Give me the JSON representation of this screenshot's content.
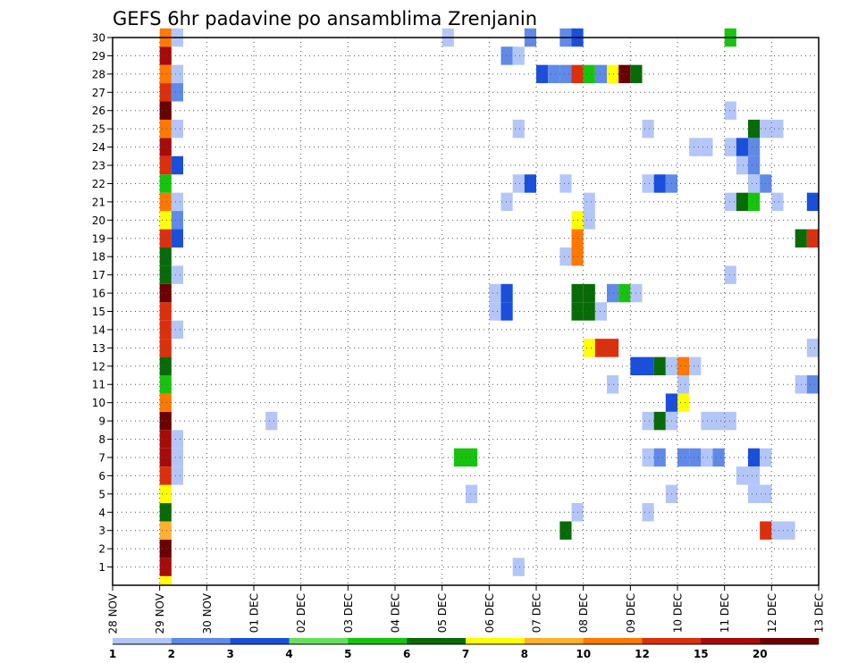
{
  "chart_data": {
    "type": "heatmap",
    "title": "GEFS 6hr padavine po ansamblima Zrenjanin",
    "xlabel": "",
    "ylabel": "",
    "x_start": "28 NOV",
    "x_ticks": [
      "28 NOV",
      "29 NOV",
      "30 NOV",
      "01 DEC",
      "02 DEC",
      "03 DEC",
      "04 DEC",
      "05 DEC",
      "06 DEC",
      "07 DEC",
      "08 DEC",
      "09 DEC",
      "10 DEC",
      "11 DEC",
      "12 DEC",
      "13 DEC"
    ],
    "steps_per_day": 4,
    "y_ticks": [
      1,
      2,
      3,
      4,
      5,
      6,
      7,
      8,
      9,
      10,
      11,
      12,
      13,
      14,
      15,
      16,
      17,
      18,
      19,
      20,
      21,
      22,
      23,
      24,
      25,
      26,
      27,
      28,
      29,
      30
    ],
    "ylim": [
      0,
      30
    ],
    "grid": true,
    "colorbar": {
      "labels": [
        "1",
        "2",
        "3",
        "4",
        "5",
        "6",
        "7",
        "8",
        "10",
        "12",
        "15",
        "20"
      ],
      "colors": [
        "#b3c6f7",
        "#5f8ae8",
        "#1a4fdc",
        "#66e05c",
        "#16c40e",
        "#076b07",
        "#ffff00",
        "#ffb02e",
        "#ff7800",
        "#dc2f0c",
        "#a80a0a",
        "#6b0000"
      ]
    },
    "cells": [
      {
        "m": 0,
        "s": 4,
        "l": 6
      },
      {
        "m": 1,
        "s": 4,
        "l": 10
      },
      {
        "m": 2,
        "s": 4,
        "l": 11
      },
      {
        "m": 3,
        "s": 4,
        "l": 7
      },
      {
        "m": 4,
        "s": 4,
        "l": 5
      },
      {
        "m": 5,
        "s": 4,
        "l": 6
      },
      {
        "m": 6,
        "s": 4,
        "l": 9
      },
      {
        "m": 7,
        "s": 4,
        "l": 10
      },
      {
        "m": 8,
        "s": 4,
        "l": 10
      },
      {
        "m": 9,
        "s": 4,
        "l": 11
      },
      {
        "m": 10,
        "s": 4,
        "l": 8
      },
      {
        "m": 11,
        "s": 4,
        "l": 4
      },
      {
        "m": 12,
        "s": 4,
        "l": 5
      },
      {
        "m": 13,
        "s": 4,
        "l": 9
      },
      {
        "m": 14,
        "s": 4,
        "l": 9
      },
      {
        "m": 15,
        "s": 4,
        "l": 9
      },
      {
        "m": 16,
        "s": 4,
        "l": 11
      },
      {
        "m": 17,
        "s": 4,
        "l": 5
      },
      {
        "m": 18,
        "s": 4,
        "l": 5
      },
      {
        "m": 19,
        "s": 4,
        "l": 9
      },
      {
        "m": 20,
        "s": 4,
        "l": 6
      },
      {
        "m": 21,
        "s": 4,
        "l": 8
      },
      {
        "m": 22,
        "s": 4,
        "l": 4
      },
      {
        "m": 23,
        "s": 4,
        "l": 9
      },
      {
        "m": 24,
        "s": 4,
        "l": 10
      },
      {
        "m": 25,
        "s": 4,
        "l": 8
      },
      {
        "m": 26,
        "s": 4,
        "l": 11
      },
      {
        "m": 27,
        "s": 4,
        "l": 9
      },
      {
        "m": 28,
        "s": 4,
        "l": 8
      },
      {
        "m": 29,
        "s": 4,
        "l": 10
      },
      {
        "m": 30,
        "s": 4,
        "l": 8
      },
      {
        "m": 30,
        "s": 5,
        "l": 0
      },
      {
        "m": 28,
        "s": 5,
        "l": 0
      },
      {
        "m": 27,
        "s": 5,
        "l": 1
      },
      {
        "m": 25,
        "s": 5,
        "l": 0
      },
      {
        "m": 23,
        "s": 5,
        "l": 2
      },
      {
        "m": 21,
        "s": 5,
        "l": 0
      },
      {
        "m": 20,
        "s": 5,
        "l": 1
      },
      {
        "m": 19,
        "s": 5,
        "l": 2
      },
      {
        "m": 17,
        "s": 5,
        "l": 0
      },
      {
        "m": 14,
        "s": 5,
        "l": 0
      },
      {
        "m": 8,
        "s": 5,
        "l": 0
      },
      {
        "m": 7,
        "s": 5,
        "l": 0
      },
      {
        "m": 6,
        "s": 5,
        "l": 0
      },
      {
        "m": 9,
        "s": 13,
        "l": 0
      },
      {
        "m": 30,
        "s": 28,
        "l": 0
      },
      {
        "m": 7,
        "s": 29,
        "l": 4
      },
      {
        "m": 7,
        "s": 30,
        "l": 4
      },
      {
        "m": 5,
        "s": 30,
        "l": 0
      },
      {
        "m": 16,
        "s": 32,
        "l": 0
      },
      {
        "m": 15,
        "s": 32,
        "l": 0
      },
      {
        "m": 16,
        "s": 33,
        "l": 2
      },
      {
        "m": 15,
        "s": 33,
        "l": 2
      },
      {
        "m": 29,
        "s": 33,
        "l": 1
      },
      {
        "m": 21,
        "s": 33,
        "l": 0
      },
      {
        "m": 29,
        "s": 34,
        "l": 0
      },
      {
        "m": 25,
        "s": 34,
        "l": 0
      },
      {
        "m": 22,
        "s": 34,
        "l": 0
      },
      {
        "m": 1,
        "s": 34,
        "l": 0
      },
      {
        "m": 22,
        "s": 35,
        "l": 2
      },
      {
        "m": 30,
        "s": 35,
        "l": 1
      },
      {
        "m": 28,
        "s": 36,
        "l": 2
      },
      {
        "m": 28,
        "s": 37,
        "l": 1
      },
      {
        "m": 28,
        "s": 38,
        "l": 1
      },
      {
        "m": 28,
        "s": 39,
        "l": 9
      },
      {
        "m": 28,
        "s": 40,
        "l": 4
      },
      {
        "m": 28,
        "s": 41,
        "l": 1
      },
      {
        "m": 28,
        "s": 42,
        "l": 6
      },
      {
        "m": 28,
        "s": 43,
        "l": 11
      },
      {
        "m": 28,
        "s": 44,
        "l": 5
      },
      {
        "m": 30,
        "s": 38,
        "l": 1
      },
      {
        "m": 22,
        "s": 38,
        "l": 0
      },
      {
        "m": 18,
        "s": 38,
        "l": 0
      },
      {
        "m": 3,
        "s": 38,
        "l": 5
      },
      {
        "m": 30,
        "s": 39,
        "l": 2
      },
      {
        "m": 20,
        "s": 39,
        "l": 6
      },
      {
        "m": 19,
        "s": 39,
        "l": 8
      },
      {
        "m": 18,
        "s": 39,
        "l": 8
      },
      {
        "m": 15,
        "s": 39,
        "l": 5
      },
      {
        "m": 16,
        "s": 39,
        "l": 5
      },
      {
        "m": 4,
        "s": 39,
        "l": 0
      },
      {
        "m": 15,
        "s": 40,
        "l": 5
      },
      {
        "m": 16,
        "s": 40,
        "l": 5
      },
      {
        "m": 21,
        "s": 40,
        "l": 0
      },
      {
        "m": 20,
        "s": 40,
        "l": 0
      },
      {
        "m": 13,
        "s": 40,
        "l": 6
      },
      {
        "m": 13,
        "s": 41,
        "l": 9
      },
      {
        "m": 13,
        "s": 42,
        "l": 9
      },
      {
        "m": 15,
        "s": 41,
        "l": 0
      },
      {
        "m": 16,
        "s": 42,
        "l": 1
      },
      {
        "m": 11,
        "s": 42,
        "l": 0
      },
      {
        "m": 16,
        "s": 43,
        "l": 4
      },
      {
        "m": 16,
        "s": 44,
        "l": 0
      },
      {
        "m": 12,
        "s": 44,
        "l": 2
      },
      {
        "m": 12,
        "s": 45,
        "l": 2
      },
      {
        "m": 12,
        "s": 46,
        "l": 5
      },
      {
        "m": 12,
        "s": 47,
        "l": 0
      },
      {
        "m": 12,
        "s": 48,
        "l": 8
      },
      {
        "m": 12,
        "s": 49,
        "l": 0
      },
      {
        "m": 25,
        "s": 45,
        "l": 0
      },
      {
        "m": 22,
        "s": 45,
        "l": 0
      },
      {
        "m": 9,
        "s": 45,
        "l": 0
      },
      {
        "m": 7,
        "s": 45,
        "l": 0
      },
      {
        "m": 4,
        "s": 45,
        "l": 0
      },
      {
        "m": 22,
        "s": 46,
        "l": 2
      },
      {
        "m": 22,
        "s": 47,
        "l": 1
      },
      {
        "m": 9,
        "s": 46,
        "l": 5
      },
      {
        "m": 7,
        "s": 46,
        "l": 1
      },
      {
        "m": 10,
        "s": 47,
        "l": 2
      },
      {
        "m": 10,
        "s": 48,
        "l": 6
      },
      {
        "m": 9,
        "s": 47,
        "l": 0
      },
      {
        "m": 5,
        "s": 47,
        "l": 0
      },
      {
        "m": 11,
        "s": 48,
        "l": 0
      },
      {
        "m": 7,
        "s": 48,
        "l": 1
      },
      {
        "m": 7,
        "s": 49,
        "l": 1
      },
      {
        "m": 24,
        "s": 49,
        "l": 0
      },
      {
        "m": 24,
        "s": 50,
        "l": 0
      },
      {
        "m": 9,
        "s": 50,
        "l": 0
      },
      {
        "m": 9,
        "s": 51,
        "l": 0
      },
      {
        "m": 9,
        "s": 52,
        "l": 0
      },
      {
        "m": 7,
        "s": 50,
        "l": 0
      },
      {
        "m": 7,
        "s": 51,
        "l": 1
      },
      {
        "m": 30,
        "s": 52,
        "l": 4
      },
      {
        "m": 26,
        "s": 52,
        "l": 0
      },
      {
        "m": 24,
        "s": 52,
        "l": 0
      },
      {
        "m": 21,
        "s": 52,
        "l": 0
      },
      {
        "m": 17,
        "s": 52,
        "l": 0
      },
      {
        "m": 24,
        "s": 53,
        "l": 2
      },
      {
        "m": 23,
        "s": 53,
        "l": 0
      },
      {
        "m": 21,
        "s": 53,
        "l": 5
      },
      {
        "m": 6,
        "s": 53,
        "l": 0
      },
      {
        "m": 25,
        "s": 54,
        "l": 5
      },
      {
        "m": 24,
        "s": 54,
        "l": 1
      },
      {
        "m": 23,
        "s": 54,
        "l": 1
      },
      {
        "m": 22,
        "s": 54,
        "l": 0
      },
      {
        "m": 21,
        "s": 54,
        "l": 4
      },
      {
        "m": 7,
        "s": 54,
        "l": 2
      },
      {
        "m": 6,
        "s": 54,
        "l": 0
      },
      {
        "m": 5,
        "s": 54,
        "l": 0
      },
      {
        "m": 25,
        "s": 55,
        "l": 0
      },
      {
        "m": 25,
        "s": 56,
        "l": 0
      },
      {
        "m": 22,
        "s": 55,
        "l": 1
      },
      {
        "m": 21,
        "s": 56,
        "l": 0
      },
      {
        "m": 7,
        "s": 55,
        "l": 0
      },
      {
        "m": 5,
        "s": 55,
        "l": 0
      },
      {
        "m": 3,
        "s": 55,
        "l": 9
      },
      {
        "m": 3,
        "s": 56,
        "l": 0
      },
      {
        "m": 3,
        "s": 57,
        "l": 0
      },
      {
        "m": 21,
        "s": 59,
        "l": 2
      },
      {
        "m": 19,
        "s": 58,
        "l": 5
      },
      {
        "m": 19,
        "s": 59,
        "l": 9
      },
      {
        "m": 13,
        "s": 59,
        "l": 0
      },
      {
        "m": 11,
        "s": 58,
        "l": 0
      },
      {
        "m": 11,
        "s": 59,
        "l": 1
      }
    ]
  }
}
